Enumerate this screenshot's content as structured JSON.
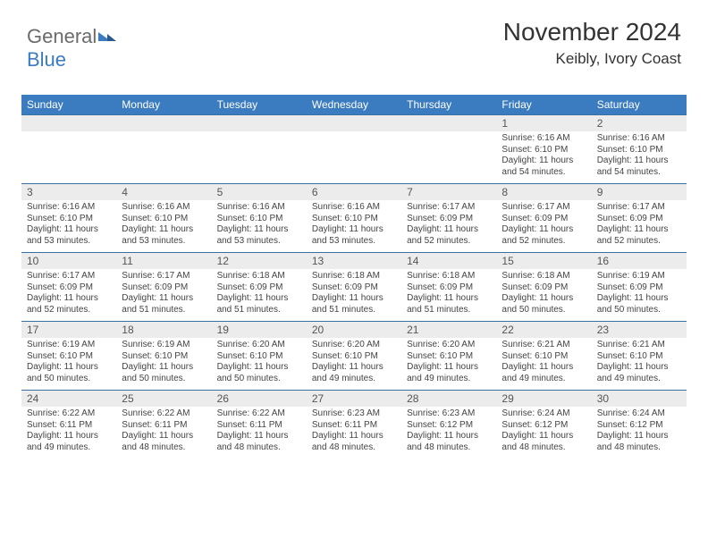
{
  "logo": {
    "text_gray": "General",
    "text_blue": "Blue"
  },
  "header": {
    "month": "November 2024",
    "location": "Keibly, Ivory Coast"
  },
  "calendar": {
    "header_bg": "#3b7bbf",
    "header_fg": "#ffffff",
    "daynum_bg": "#ececec",
    "border_color": "#3b6ea5",
    "days": [
      "Sunday",
      "Monday",
      "Tuesday",
      "Wednesday",
      "Thursday",
      "Friday",
      "Saturday"
    ],
    "weeks": [
      {
        "nums": [
          "",
          "",
          "",
          "",
          "",
          "1",
          "2"
        ],
        "cells": [
          null,
          null,
          null,
          null,
          null,
          {
            "sunrise": "6:16 AM",
            "sunset": "6:10 PM",
            "daylight": "11 hours and 54 minutes."
          },
          {
            "sunrise": "6:16 AM",
            "sunset": "6:10 PM",
            "daylight": "11 hours and 54 minutes."
          }
        ]
      },
      {
        "nums": [
          "3",
          "4",
          "5",
          "6",
          "7",
          "8",
          "9"
        ],
        "cells": [
          {
            "sunrise": "6:16 AM",
            "sunset": "6:10 PM",
            "daylight": "11 hours and 53 minutes."
          },
          {
            "sunrise": "6:16 AM",
            "sunset": "6:10 PM",
            "daylight": "11 hours and 53 minutes."
          },
          {
            "sunrise": "6:16 AM",
            "sunset": "6:10 PM",
            "daylight": "11 hours and 53 minutes."
          },
          {
            "sunrise": "6:16 AM",
            "sunset": "6:10 PM",
            "daylight": "11 hours and 53 minutes."
          },
          {
            "sunrise": "6:17 AM",
            "sunset": "6:09 PM",
            "daylight": "11 hours and 52 minutes."
          },
          {
            "sunrise": "6:17 AM",
            "sunset": "6:09 PM",
            "daylight": "11 hours and 52 minutes."
          },
          {
            "sunrise": "6:17 AM",
            "sunset": "6:09 PM",
            "daylight": "11 hours and 52 minutes."
          }
        ]
      },
      {
        "nums": [
          "10",
          "11",
          "12",
          "13",
          "14",
          "15",
          "16"
        ],
        "cells": [
          {
            "sunrise": "6:17 AM",
            "sunset": "6:09 PM",
            "daylight": "11 hours and 52 minutes."
          },
          {
            "sunrise": "6:17 AM",
            "sunset": "6:09 PM",
            "daylight": "11 hours and 51 minutes."
          },
          {
            "sunrise": "6:18 AM",
            "sunset": "6:09 PM",
            "daylight": "11 hours and 51 minutes."
          },
          {
            "sunrise": "6:18 AM",
            "sunset": "6:09 PM",
            "daylight": "11 hours and 51 minutes."
          },
          {
            "sunrise": "6:18 AM",
            "sunset": "6:09 PM",
            "daylight": "11 hours and 51 minutes."
          },
          {
            "sunrise": "6:18 AM",
            "sunset": "6:09 PM",
            "daylight": "11 hours and 50 minutes."
          },
          {
            "sunrise": "6:19 AM",
            "sunset": "6:09 PM",
            "daylight": "11 hours and 50 minutes."
          }
        ]
      },
      {
        "nums": [
          "17",
          "18",
          "19",
          "20",
          "21",
          "22",
          "23"
        ],
        "cells": [
          {
            "sunrise": "6:19 AM",
            "sunset": "6:10 PM",
            "daylight": "11 hours and 50 minutes."
          },
          {
            "sunrise": "6:19 AM",
            "sunset": "6:10 PM",
            "daylight": "11 hours and 50 minutes."
          },
          {
            "sunrise": "6:20 AM",
            "sunset": "6:10 PM",
            "daylight": "11 hours and 50 minutes."
          },
          {
            "sunrise": "6:20 AM",
            "sunset": "6:10 PM",
            "daylight": "11 hours and 49 minutes."
          },
          {
            "sunrise": "6:20 AM",
            "sunset": "6:10 PM",
            "daylight": "11 hours and 49 minutes."
          },
          {
            "sunrise": "6:21 AM",
            "sunset": "6:10 PM",
            "daylight": "11 hours and 49 minutes."
          },
          {
            "sunrise": "6:21 AM",
            "sunset": "6:10 PM",
            "daylight": "11 hours and 49 minutes."
          }
        ]
      },
      {
        "nums": [
          "24",
          "25",
          "26",
          "27",
          "28",
          "29",
          "30"
        ],
        "cells": [
          {
            "sunrise": "6:22 AM",
            "sunset": "6:11 PM",
            "daylight": "11 hours and 49 minutes."
          },
          {
            "sunrise": "6:22 AM",
            "sunset": "6:11 PM",
            "daylight": "11 hours and 48 minutes."
          },
          {
            "sunrise": "6:22 AM",
            "sunset": "6:11 PM",
            "daylight": "11 hours and 48 minutes."
          },
          {
            "sunrise": "6:23 AM",
            "sunset": "6:11 PM",
            "daylight": "11 hours and 48 minutes."
          },
          {
            "sunrise": "6:23 AM",
            "sunset": "6:12 PM",
            "daylight": "11 hours and 48 minutes."
          },
          {
            "sunrise": "6:24 AM",
            "sunset": "6:12 PM",
            "daylight": "11 hours and 48 minutes."
          },
          {
            "sunrise": "6:24 AM",
            "sunset": "6:12 PM",
            "daylight": "11 hours and 48 minutes."
          }
        ]
      }
    ],
    "labels": {
      "sunrise": "Sunrise:",
      "sunset": "Sunset:",
      "daylight": "Daylight:"
    }
  }
}
